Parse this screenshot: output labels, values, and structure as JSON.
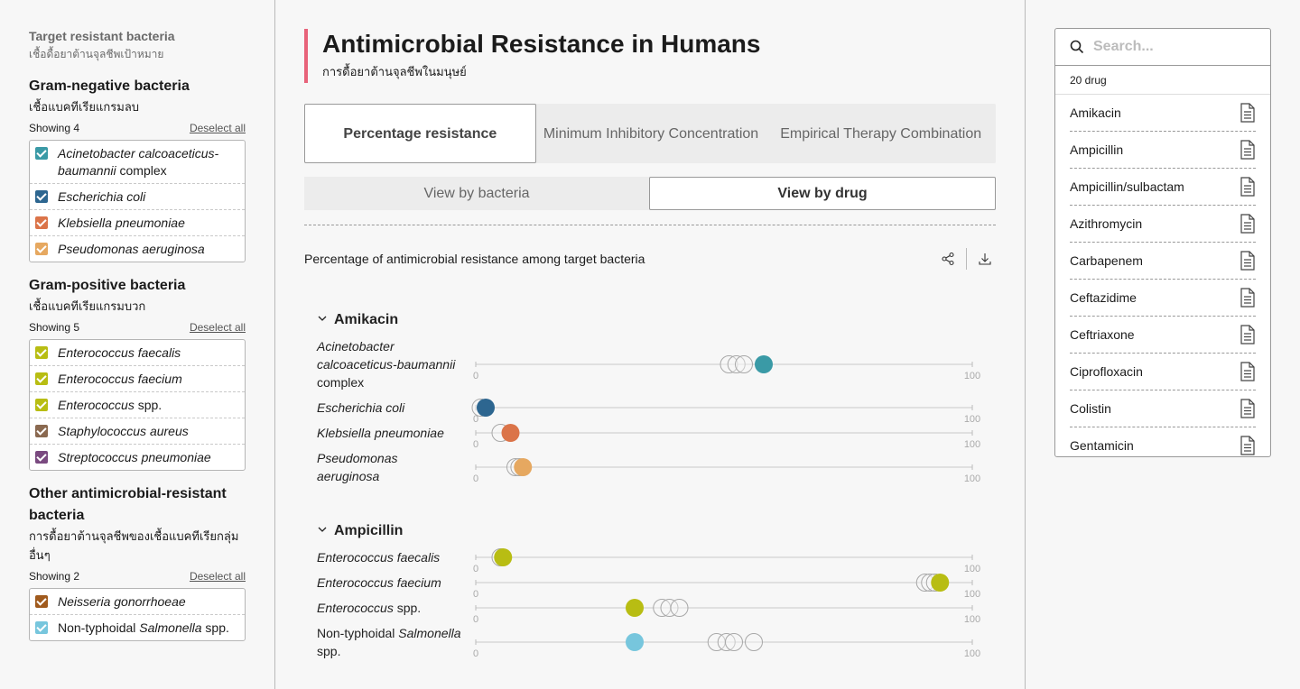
{
  "filters": {
    "title": "Target resistant bacteria",
    "subtitle": "เชื้อดื้อยาต้านจุลชีพเป้าหมาย",
    "groups": [
      {
        "title": "Gram-negative bacteria",
        "subtitle": "เชื้อแบคทีเรียแกรมลบ",
        "showing": "Showing 4",
        "deselect": "Deselect all",
        "items": [
          {
            "italic": "Acinetobacter calcoaceticus-baumannii",
            "rest": " complex",
            "color": "#3a9aa6"
          },
          {
            "italic": "Escherichia coli",
            "rest": "",
            "color": "#2d6690"
          },
          {
            "italic": "Klebsiella pneumoniae",
            "rest": "",
            "color": "#db7449"
          },
          {
            "italic": "Pseudomonas aeruginosa",
            "rest": "",
            "color": "#e6a860"
          }
        ]
      },
      {
        "title": "Gram-positive bacteria",
        "subtitle": "เชื้อแบคทีเรียแกรมบวก",
        "showing": "Showing 5",
        "deselect": "Deselect all",
        "items": [
          {
            "italic": "Enterococcus faecalis",
            "rest": "",
            "color": "#b8bd13"
          },
          {
            "italic": "Enterococcus faecium",
            "rest": "",
            "color": "#b8bd13"
          },
          {
            "italic": "Enterococcus",
            "rest": " spp.",
            "color": "#b8bd13"
          },
          {
            "italic": "Staphylococcus aureus",
            "rest": "",
            "color": "#8a6950"
          },
          {
            "italic": "Streptococcus pneumoniae",
            "rest": "",
            "color": "#7a4a80"
          }
        ]
      },
      {
        "title": "Other antimicrobial-resistant bacteria",
        "subtitle": "การดื้อยาต้านจุลชีพของเชื้อแบคทีเรียกลุ่มอื่นๆ",
        "showing": "Showing 2",
        "deselect": "Deselect all",
        "items": [
          {
            "italic": "Neisseria gonorrhoeae",
            "rest": "",
            "color": "#a05a1d"
          },
          {
            "pre": "Non-typhoidal ",
            "italic": "Salmonella",
            "rest": " spp.",
            "color": "#77c6dd"
          }
        ]
      }
    ]
  },
  "header": {
    "title": "Antimicrobial Resistance in Humans",
    "subtitle": "การดื้อยาต้านจุลชีพในมนุษย์"
  },
  "tabs": [
    "Percentage resistance",
    "Minimum Inhibitory Concentration",
    "Empirical Therapy Combination"
  ],
  "views": [
    "View by bacteria",
    "View by drug"
  ],
  "chart_title": "Percentage of antimicrobial resistance among target bacteria",
  "chart_data": {
    "type": "scatter",
    "xlim": [
      0,
      100
    ],
    "axis_min_label": "0",
    "axis_max_label": "100",
    "groups": [
      {
        "drug": "Amikacin",
        "rows": [
          {
            "label_lines": [
              [
                "Acinetobacter",
                true
              ],
              [
                "calcoaceticus-baumannii",
                true
              ],
              [
                "complex",
                false
              ]
            ],
            "value": 58,
            "history": [
              51,
              52.5,
              54
            ],
            "color": "#3a9aa6"
          },
          {
            "label_lines": [
              [
                "Escherichia coli",
                true
              ]
            ],
            "value": 2,
            "history": [
              1
            ],
            "color": "#2d6690"
          },
          {
            "label_lines": [
              [
                "Klebsiella pneumoniae",
                true
              ]
            ],
            "value": 7,
            "history": [
              5
            ],
            "color": "#db7449"
          },
          {
            "label_lines": [
              [
                "Pseudomonas",
                true
              ],
              [
                "aeruginosa",
                true
              ]
            ],
            "value": 9.5,
            "history": [
              8,
              8.8
            ],
            "color": "#e6a860"
          }
        ]
      },
      {
        "drug": "Ampicillin",
        "rows": [
          {
            "label_lines": [
              [
                "Enterococcus faecalis",
                true
              ]
            ],
            "value": 5.5,
            "history": [
              5
            ],
            "color": "#b8bd13"
          },
          {
            "label_lines": [
              [
                "Enterococcus faecium",
                true
              ]
            ],
            "value": 93.5,
            "history": [
              90.5,
              91.5,
              92.5
            ],
            "color": "#b8bd13"
          },
          {
            "label_lines": [
              [
                "Enterococcus",
                true,
                " spp."
              ]
            ],
            "value": 32,
            "history": [
              37.5,
              39,
              41
            ],
            "color": "#b8bd13"
          },
          {
            "label_lines": [
              [
                "Non-typhoidal ",
                false,
                "",
                "Salmonella"
              ],
              [
                "spp.",
                false
              ]
            ],
            "value": 32,
            "history": [
              48.5,
              50.5,
              52,
              56
            ],
            "color": "#77c6dd"
          }
        ]
      }
    ]
  },
  "search": {
    "placeholder": "Search...",
    "count": "20 drug"
  },
  "drugs": [
    "Amikacin",
    "Ampicillin",
    "Ampicillin/sulbactam",
    "Azithromycin",
    "Carbapenem",
    "Ceftazidime",
    "Ceftriaxone",
    "Ciprofloxacin",
    "Colistin",
    "Gentamicin"
  ]
}
